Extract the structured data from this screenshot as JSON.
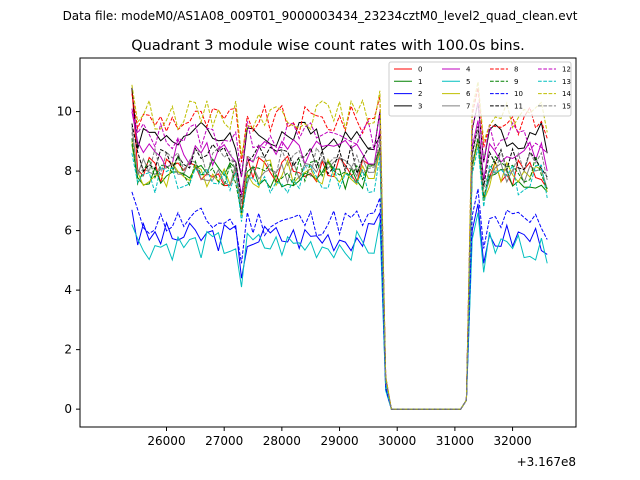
{
  "chart_data": {
    "type": "line",
    "suptitle": "Data file: modeM0/AS1A08_009T01_9000003434_23234cztM0_level2_quad_clean.evt",
    "title": "Quadrant 3 module wise count rates with 100.0s bins.",
    "xlabel": "",
    "ylabel": "",
    "x_offset_label": "+3.167e8",
    "xlim": [
      24500,
      33100
    ],
    "ylim": [
      -0.6,
      11.8
    ],
    "x_ticks": [
      26000,
      27000,
      28000,
      29000,
      30000,
      31000,
      32000
    ],
    "x_tick_labels": [
      "26000",
      "27000",
      "28000",
      "29000",
      "30000",
      "31000",
      "32000"
    ],
    "y_ticks": [
      0,
      2,
      4,
      6,
      8,
      10
    ],
    "y_tick_labels": [
      "0",
      "2",
      "4",
      "6",
      "8",
      "10"
    ],
    "legend_position": "top-right",
    "legend_columns": 4,
    "x": [
      25400,
      25500,
      25600,
      25700,
      25800,
      25900,
      26000,
      26100,
      26200,
      26300,
      26400,
      26500,
      26600,
      26700,
      26800,
      26900,
      27000,
      27100,
      27200,
      27300,
      27400,
      27500,
      27600,
      27700,
      27800,
      27900,
      28000,
      28100,
      28200,
      28300,
      28400,
      28500,
      28600,
      28700,
      28800,
      28900,
      29000,
      29100,
      29200,
      29300,
      29400,
      29500,
      29600,
      29700,
      29800,
      29900,
      30000,
      30100,
      30200,
      30300,
      30400,
      30500,
      30600,
      30700,
      30800,
      30900,
      31000,
      31100,
      31200,
      31300,
      31400,
      31500,
      31600,
      31700,
      31800,
      31900,
      32000,
      32100,
      32200,
      32300,
      32400,
      32500,
      32600
    ],
    "series": [
      {
        "name": "0",
        "color": "#ff0000",
        "dash": "solid",
        "base": 8.0,
        "start": 10.8
      },
      {
        "name": "1",
        "color": "#008000",
        "dash": "solid",
        "base": 7.9,
        "start": 8.9
      },
      {
        "name": "2",
        "color": "#0000ff",
        "dash": "solid",
        "base": 5.8,
        "start": 6.7
      },
      {
        "name": "3",
        "color": "#000000",
        "dash": "solid",
        "base": 9.2,
        "start": 10.8
      },
      {
        "name": "4",
        "color": "#bf00bf",
        "dash": "solid",
        "base": 8.6,
        "start": 10.0
      },
      {
        "name": "5",
        "color": "#00bfbf",
        "dash": "solid",
        "base": 5.5,
        "start": 6.2
      },
      {
        "name": "6",
        "color": "#bfbf00",
        "dash": "solid",
        "base": 7.9,
        "start": 9.0
      },
      {
        "name": "7",
        "color": "#808080",
        "dash": "solid",
        "base": 8.0,
        "start": 9.5
      },
      {
        "name": "8",
        "color": "#ff0000",
        "dash": "dashed",
        "base": 9.7,
        "start": 10.6
      },
      {
        "name": "9",
        "color": "#008000",
        "dash": "dashed",
        "base": 8.0,
        "start": 9.1
      },
      {
        "name": "10",
        "color": "#0000ff",
        "dash": "dashed",
        "base": 6.3,
        "start": 7.3
      },
      {
        "name": "11",
        "color": "#000000",
        "dash": "dashed",
        "base": 8.4,
        "start": 9.6
      },
      {
        "name": "12",
        "color": "#bf00bf",
        "dash": "dashed",
        "base": 9.2,
        "start": 10.1
      },
      {
        "name": "13",
        "color": "#00bfbf",
        "dash": "dashed",
        "base": 7.7,
        "start": 8.6
      },
      {
        "name": "14",
        "color": "#bfbf00",
        "dash": "dashed",
        "base": 9.9,
        "start": 10.9
      },
      {
        "name": "15",
        "color": "#808080",
        "dash": "dashed",
        "base": 8.3,
        "start": 9.3
      }
    ]
  }
}
